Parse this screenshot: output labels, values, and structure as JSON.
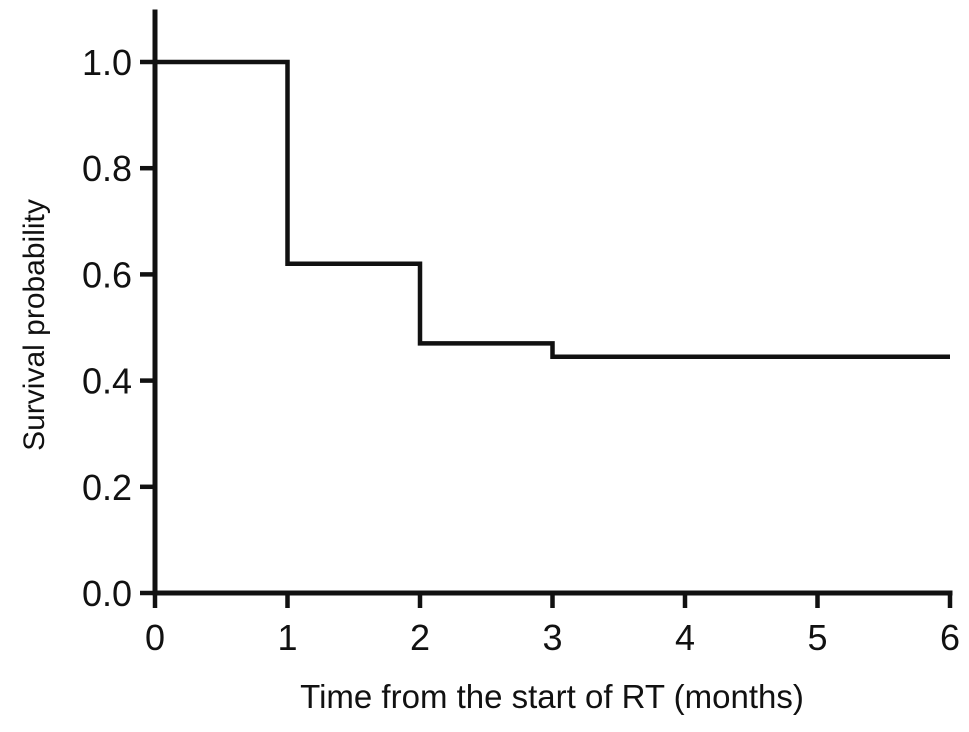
{
  "figure": {
    "background_color": "#ffffff",
    "ink_color": "#111111"
  },
  "chart_data": {
    "type": "line",
    "subtype": "kaplan-meier-step",
    "title": "",
    "xlabel": "Time from the start of RT (months)",
    "ylabel": "Survival probability",
    "xlim": [
      0,
      6
    ],
    "ylim": [
      0.0,
      1.0
    ],
    "grid": false,
    "legend_position": "none",
    "x_ticks": [
      {
        "value": 0,
        "label": "0"
      },
      {
        "value": 1,
        "label": "1"
      },
      {
        "value": 2,
        "label": "2"
      },
      {
        "value": 3,
        "label": "3"
      },
      {
        "value": 4,
        "label": "4"
      },
      {
        "value": 5,
        "label": "5"
      },
      {
        "value": 6,
        "label": "6"
      }
    ],
    "y_ticks": [
      {
        "value": 0.0,
        "label": "0.0"
      },
      {
        "value": 0.2,
        "label": "0.2"
      },
      {
        "value": 0.4,
        "label": "0.4"
      },
      {
        "value": 0.6,
        "label": "0.6"
      },
      {
        "value": 0.8,
        "label": "0.8"
      },
      {
        "value": 1.0,
        "label": "1.0"
      }
    ],
    "series": [
      {
        "name": "survival-curve",
        "color": "#111111",
        "step_points": [
          {
            "x": 0,
            "y": 1.0
          },
          {
            "x": 1,
            "y": 1.0
          },
          {
            "x": 1,
            "y": 0.62
          },
          {
            "x": 2,
            "y": 0.62
          },
          {
            "x": 2,
            "y": 0.47
          },
          {
            "x": 3,
            "y": 0.47
          },
          {
            "x": 3,
            "y": 0.445
          },
          {
            "x": 6,
            "y": 0.445
          }
        ]
      }
    ]
  }
}
